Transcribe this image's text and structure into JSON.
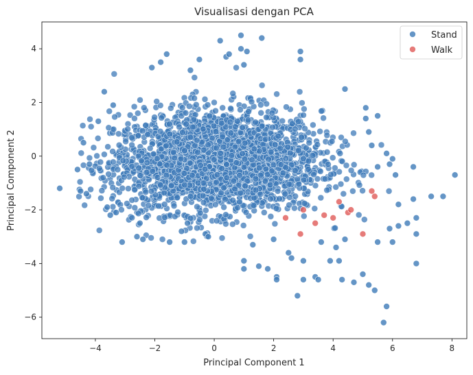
{
  "chart_data": {
    "type": "scatter",
    "title": "Visualisasi dengan PCA",
    "xlabel": "Principal Component 1",
    "ylabel": "Principal Component 2",
    "xlim": [
      -5.8,
      8.5
    ],
    "ylim": [
      -6.8,
      5.0
    ],
    "xticks": [
      -4,
      -2,
      0,
      2,
      4,
      6,
      8
    ],
    "yticks": [
      4,
      2,
      0,
      -2,
      -4,
      -6
    ],
    "xtick_labels": [
      "−4",
      "−2",
      "0",
      "2",
      "4",
      "6",
      "8"
    ],
    "ytick_labels": [
      "4",
      "2",
      "0",
      "−2",
      "−4",
      "−6"
    ],
    "grid": false,
    "legend_position": "top-right",
    "series": [
      {
        "name": "Stand",
        "color": "#3d7ab8",
        "points": [
          [
            -5.2,
            -1.2
          ],
          [
            -4.6,
            -0.5
          ],
          [
            -4.5,
            -1.3
          ],
          [
            -4.3,
            -1.4
          ],
          [
            -4.4,
            0.5
          ],
          [
            -4.2,
            -0.3
          ],
          [
            -3.6,
            -1.9
          ],
          [
            -3.1,
            -3.2
          ],
          [
            -3.5,
            -2.2
          ],
          [
            -3.3,
            -2.1
          ],
          [
            -3.9,
            1.3
          ],
          [
            -3.7,
            2.4
          ],
          [
            -3.4,
            1.9
          ],
          [
            -2.6,
            -3.0
          ],
          [
            -2.5,
            -2.5
          ],
          [
            -2.4,
            -3.1
          ],
          [
            -2.1,
            3.3
          ],
          [
            -1.8,
            3.5
          ],
          [
            -1.6,
            3.8
          ],
          [
            -1.5,
            -3.2
          ],
          [
            -1.1,
            -2.8
          ],
          [
            -1.0,
            -3.2
          ],
          [
            -0.9,
            -2.5
          ],
          [
            -0.8,
            3.2
          ],
          [
            -0.5,
            3.6
          ],
          [
            -0.3,
            -2.9
          ],
          [
            -0.2,
            -3.0
          ],
          [
            0.2,
            4.3
          ],
          [
            0.4,
            3.7
          ],
          [
            0.5,
            3.8
          ],
          [
            0.9,
            4.0
          ],
          [
            0.9,
            4.5
          ],
          [
            1.0,
            3.4
          ],
          [
            1.1,
            3.9
          ],
          [
            1.6,
            4.4
          ],
          [
            1.0,
            -3.9
          ],
          [
            1.0,
            -4.2
          ],
          [
            1.3,
            -3.3
          ],
          [
            1.5,
            -4.1
          ],
          [
            1.8,
            -4.2
          ],
          [
            2.0,
            -3.1
          ],
          [
            2.1,
            -4.5
          ],
          [
            2.1,
            -4.6
          ],
          [
            2.5,
            -3.6
          ],
          [
            2.6,
            -3.8
          ],
          [
            2.8,
            -5.2
          ],
          [
            2.9,
            3.6
          ],
          [
            2.9,
            3.9
          ],
          [
            3.0,
            -3.9
          ],
          [
            3.0,
            -4.6
          ],
          [
            3.4,
            -4.5
          ],
          [
            3.5,
            -4.6
          ],
          [
            3.6,
            -3.2
          ],
          [
            3.9,
            -3.9
          ],
          [
            4.1,
            -3.4
          ],
          [
            4.2,
            -3.9
          ],
          [
            4.3,
            -4.6
          ],
          [
            4.4,
            2.5
          ],
          [
            4.4,
            -3.1
          ],
          [
            4.7,
            -4.7
          ],
          [
            5.0,
            -4.4
          ],
          [
            5.2,
            -4.8
          ],
          [
            5.4,
            -5.0
          ],
          [
            5.8,
            -5.6
          ],
          [
            5.7,
            -6.2
          ],
          [
            5.1,
            1.8
          ],
          [
            5.1,
            1.4
          ],
          [
            5.2,
            0.9
          ],
          [
            5.5,
            1.5
          ],
          [
            5.3,
            0.4
          ],
          [
            5.5,
            -0.4
          ],
          [
            5.8,
            0.1
          ],
          [
            5.9,
            -0.3
          ],
          [
            6.0,
            -0.1
          ],
          [
            6.1,
            -0.7
          ],
          [
            6.2,
            -1.8
          ],
          [
            6.2,
            -2.6
          ],
          [
            6.5,
            -2.5
          ],
          [
            5.9,
            -2.7
          ],
          [
            5.5,
            -3.2
          ],
          [
            6.0,
            -3.2
          ],
          [
            6.8,
            -2.3
          ],
          [
            6.8,
            -2.9
          ],
          [
            6.8,
            -4.0
          ],
          [
            6.7,
            -0.4
          ],
          [
            6.7,
            -1.6
          ],
          [
            7.3,
            -1.5
          ],
          [
            7.7,
            -1.5
          ],
          [
            8.1,
            -0.7
          ]
        ]
      },
      {
        "name": "Walk",
        "color": "#e05a57",
        "points": [
          [
            2.9,
            -2.9
          ],
          [
            3.0,
            -2.0
          ],
          [
            3.4,
            -2.5
          ],
          [
            3.7,
            -2.2
          ],
          [
            4.0,
            -2.3
          ],
          [
            4.5,
            -2.1
          ],
          [
            4.6,
            -2.0
          ],
          [
            5.0,
            -2.9
          ],
          [
            5.3,
            -1.3
          ],
          [
            5.4,
            -1.5
          ],
          [
            2.4,
            -2.3
          ],
          [
            4.2,
            -1.7
          ]
        ]
      }
    ]
  }
}
